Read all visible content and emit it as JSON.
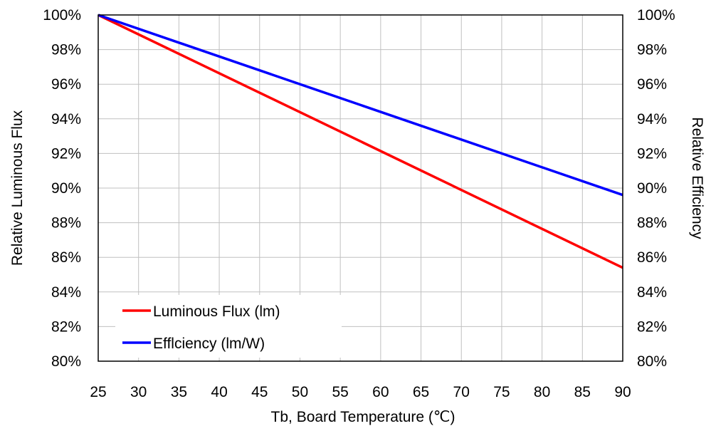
{
  "colors": {
    "luminous_flux": "#ff0000",
    "efficiency": "#0000ff",
    "grid": "#c0c0c0",
    "frame": "#000000"
  },
  "chart_data": {
    "type": "line",
    "xlabel": "Tb, Board Temperature (℃)",
    "ylabel_left": "Relative Luminous Flux",
    "ylabel_right": "Relative Efficiency",
    "xlim": [
      25,
      90
    ],
    "ylim": [
      80,
      100
    ],
    "x_ticks": [
      25,
      30,
      35,
      40,
      45,
      50,
      55,
      60,
      65,
      70,
      75,
      80,
      85,
      90
    ],
    "y_ticks": [
      80,
      82,
      84,
      86,
      88,
      90,
      92,
      94,
      96,
      98,
      100
    ],
    "y_tick_labels": [
      "80%",
      "82%",
      "84%",
      "86%",
      "88%",
      "90%",
      "92%",
      "94%",
      "96%",
      "98%",
      "100%"
    ],
    "grid": true,
    "legend": "bottom-left",
    "series": [
      {
        "name": "Luminous Flux (lm)",
        "color": "#ff0000",
        "x": [
          25,
          90
        ],
        "y": [
          100,
          85.4
        ]
      },
      {
        "name": "Efflciency (lm/W)",
        "color": "#0000ff",
        "x": [
          25,
          90
        ],
        "y": [
          100,
          89.6
        ]
      }
    ]
  }
}
